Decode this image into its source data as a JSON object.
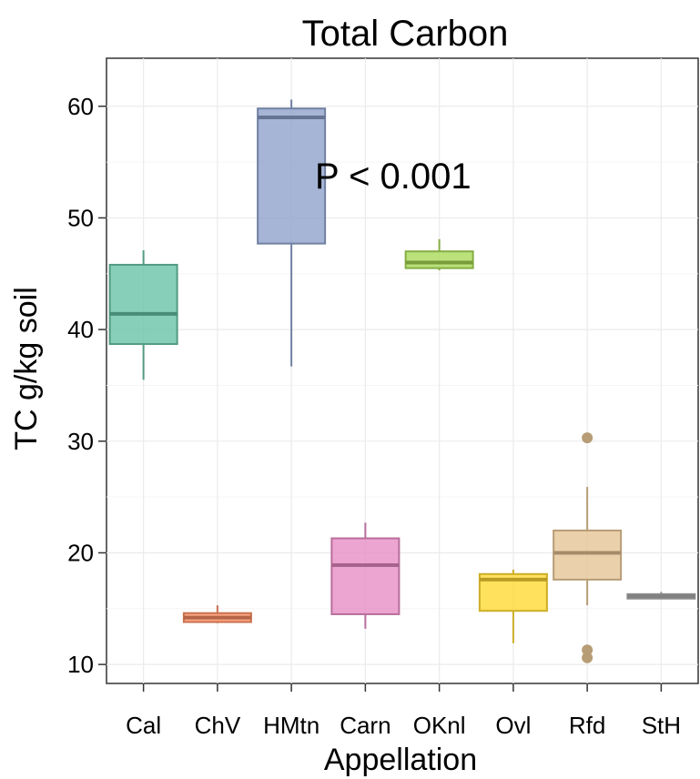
{
  "chart_data": {
    "type": "box",
    "title": "Total Carbon",
    "xlabel": "Appellation",
    "ylabel": "TC g/kg soil",
    "ylim": [
      8.3,
      64.3
    ],
    "yticks": [
      10,
      20,
      30,
      40,
      50,
      60
    ],
    "grid": true,
    "annotation": "P < 0.001",
    "categories": [
      "Cal",
      "ChV",
      "HMtn",
      "Carn",
      "OKnl",
      "Ovl",
      "Rfd",
      "StH"
    ],
    "boxes": [
      {
        "category": "Cal",
        "whisker_low": 35.5,
        "q1": 38.7,
        "median": 41.4,
        "q3": 45.8,
        "whisker_high": 47.1,
        "outliers": [],
        "color": "#66c2a5"
      },
      {
        "category": "ChV",
        "whisker_low": 13.7,
        "q1": 13.8,
        "median": 14.2,
        "q3": 14.6,
        "whisker_high": 15.3,
        "outliers": [],
        "color": "#fc8d62"
      },
      {
        "category": "HMtn",
        "whisker_low": 36.7,
        "q1": 47.7,
        "median": 59.0,
        "q3": 59.8,
        "whisker_high": 60.6,
        "outliers": [],
        "color": "#8da0cb"
      },
      {
        "category": "Carn",
        "whisker_low": 13.2,
        "q1": 14.5,
        "median": 18.9,
        "q3": 21.3,
        "whisker_high": 22.7,
        "outliers": [],
        "color": "#e78ac3"
      },
      {
        "category": "OKnl",
        "whisker_low": 45.3,
        "q1": 45.5,
        "median": 46.0,
        "q3": 47.0,
        "whisker_high": 48.1,
        "outliers": [],
        "color": "#a6d854"
      },
      {
        "category": "Ovl",
        "whisker_low": 11.9,
        "q1": 14.8,
        "median": 17.6,
        "q3": 18.1,
        "whisker_high": 18.5,
        "outliers": [],
        "color": "#ffd92f"
      },
      {
        "category": "Rfd",
        "whisker_low": 15.3,
        "q1": 17.6,
        "median": 20.0,
        "q3": 22.0,
        "whisker_high": 25.9,
        "outliers": [
          30.3,
          11.3,
          10.6
        ],
        "color": "#e5c494"
      },
      {
        "category": "StH",
        "whisker_low": 15.9,
        "q1": 15.9,
        "median": 16.1,
        "q3": 16.3,
        "whisker_high": 16.5,
        "outliers": [],
        "color": "#b3b3b3"
      }
    ]
  }
}
